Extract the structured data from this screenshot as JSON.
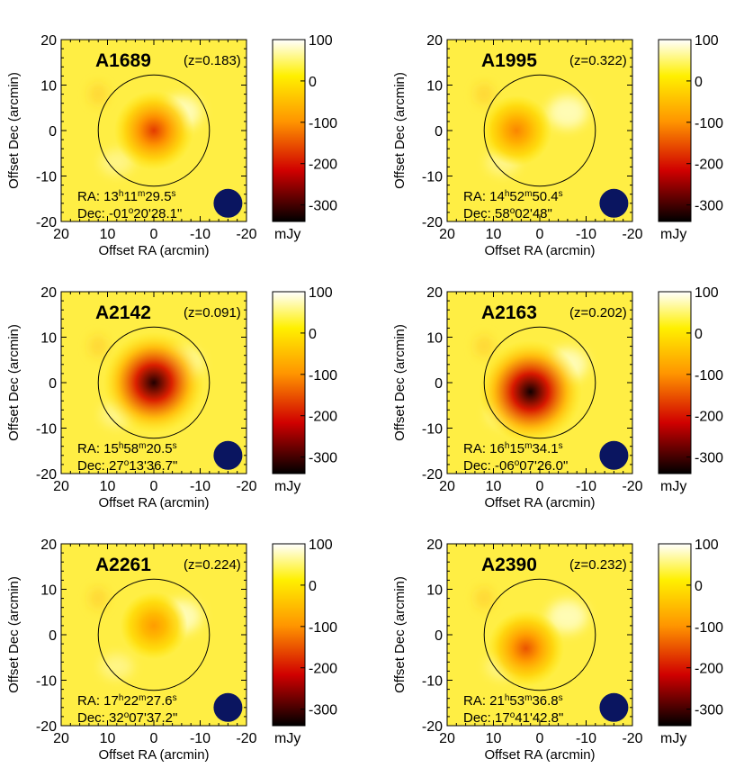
{
  "figure": {
    "xlabel": "Offset RA (arcmin)",
    "ylabel": "Offset Dec (arcmin)",
    "x_ticks": [
      "20",
      "10",
      "0",
      "-10",
      "-20"
    ],
    "y_ticks": [
      "20",
      "10",
      "0",
      "-10",
      "-20"
    ],
    "colorbar_ticks": [
      "100",
      "0",
      "-100",
      "-200",
      "-300"
    ],
    "colorbar_unit": "mJy",
    "colors": {
      "colormap": [
        "#ffffff",
        "#fff000",
        "#ff9500",
        "#d00000",
        "#000000"
      ],
      "beam": "#0a1560",
      "background_map": "#ffee44"
    }
  },
  "chart_data": [
    {
      "type": "heatmap",
      "title": "A1689",
      "z": "(z=0.183)",
      "ra": {
        "h": "13",
        "m": "11",
        "s": "29.5"
      },
      "dec": {
        "deg": "-01",
        "rest": "20'28.1\""
      },
      "xlim": [
        20,
        -20
      ],
      "ylim": [
        -20,
        20
      ],
      "colorbar_range": [
        -340,
        100
      ],
      "decrement_peak": {
        "x": 0,
        "y": 0,
        "value": -170
      },
      "circle_radius_arcmin": 12
    },
    {
      "type": "heatmap",
      "title": "A1995",
      "z": "(z=0.322)",
      "ra": {
        "h": "14",
        "m": "52",
        "s": "50.4"
      },
      "dec": {
        "deg": "58",
        "rest": "02'48\""
      },
      "xlim": [
        20,
        -20
      ],
      "ylim": [
        -20,
        20
      ],
      "colorbar_range": [
        -340,
        100
      ],
      "decrement_peak": {
        "x": 5,
        "y": 0,
        "value": -110
      },
      "circle_radius_arcmin": 12
    },
    {
      "type": "heatmap",
      "title": "A2142",
      "z": "(z=0.091)",
      "ra": {
        "h": "15",
        "m": "58",
        "s": "20.5"
      },
      "dec": {
        "deg": "27",
        "rest": "13'36.7\""
      },
      "xlim": [
        20,
        -20
      ],
      "ylim": [
        -20,
        20
      ],
      "colorbar_range": [
        -340,
        100
      ],
      "decrement_peak": {
        "x": 0,
        "y": 0,
        "value": -320
      },
      "circle_radius_arcmin": 12
    },
    {
      "type": "heatmap",
      "title": "A2163",
      "z": "(z=0.202)",
      "ra": {
        "h": "16",
        "m": "15",
        "s": "34.1"
      },
      "dec": {
        "deg": "-06",
        "rest": "07'26.0\""
      },
      "xlim": [
        20,
        -20
      ],
      "ylim": [
        -20,
        20
      ],
      "colorbar_range": [
        -340,
        100
      ],
      "decrement_peak": {
        "x": 2,
        "y": -2,
        "value": -330
      },
      "circle_radius_arcmin": 12
    },
    {
      "type": "heatmap",
      "title": "A2261",
      "z": "(z=0.224)",
      "ra": {
        "h": "17",
        "m": "22",
        "s": "27.6"
      },
      "dec": {
        "deg": "32",
        "rest": "07'37.2\""
      },
      "xlim": [
        20,
        -20
      ],
      "ylim": [
        -20,
        20
      ],
      "colorbar_range": [
        -340,
        100
      ],
      "decrement_peak": {
        "x": 0,
        "y": 2,
        "value": -90
      },
      "circle_radius_arcmin": 12
    },
    {
      "type": "heatmap",
      "title": "A2390",
      "z": "(z=0.232)",
      "ra": {
        "h": "21",
        "m": "53",
        "s": "36.8"
      },
      "dec": {
        "deg": "17",
        "rest": "41'42.8\""
      },
      "xlim": [
        20,
        -20
      ],
      "ylim": [
        -20,
        20
      ],
      "colorbar_range": [
        -340,
        100
      ],
      "decrement_peak": {
        "x": 3,
        "y": -3,
        "value": -150
      },
      "circle_radius_arcmin": 12
    }
  ]
}
